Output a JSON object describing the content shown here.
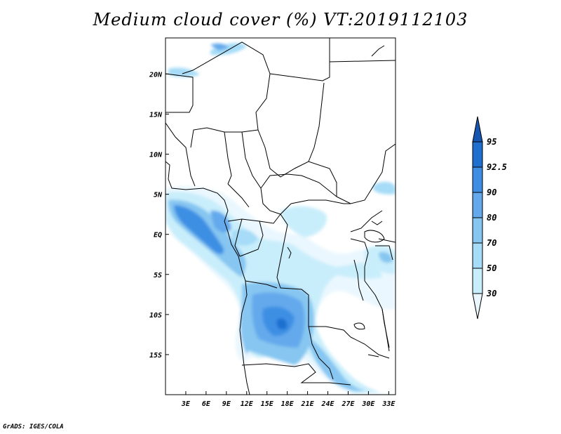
{
  "title": "Medium cloud cover (%) VT:2019112103",
  "credit": "GrADS: IGES/COLA",
  "map": {
    "lon_range": [
      0,
      34
    ],
    "lat_range": [
      -20,
      24.5
    ],
    "x_ticks": [
      "3E",
      "6E",
      "9E",
      "12E",
      "15E",
      "18E",
      "21E",
      "24E",
      "27E",
      "30E",
      "33E"
    ],
    "x_tick_values": [
      3,
      6,
      9,
      12,
      15,
      18,
      21,
      24,
      27,
      30,
      33
    ],
    "y_ticks": [
      "20N",
      "15N",
      "10N",
      "5N",
      "EQ",
      "5S",
      "10S",
      "15S"
    ],
    "y_tick_values": [
      20,
      15,
      10,
      5,
      0,
      -5,
      -10,
      -15
    ]
  },
  "legend": {
    "levels": [
      "30",
      "50",
      "70",
      "80",
      "90",
      "92.5",
      "95"
    ],
    "colors": [
      "#eaf7fe",
      "#c9eefb",
      "#a6dcf7",
      "#86c6f1",
      "#63a9ec",
      "#3e8fe4",
      "#1f6fcf",
      "#1656b0"
    ]
  }
}
